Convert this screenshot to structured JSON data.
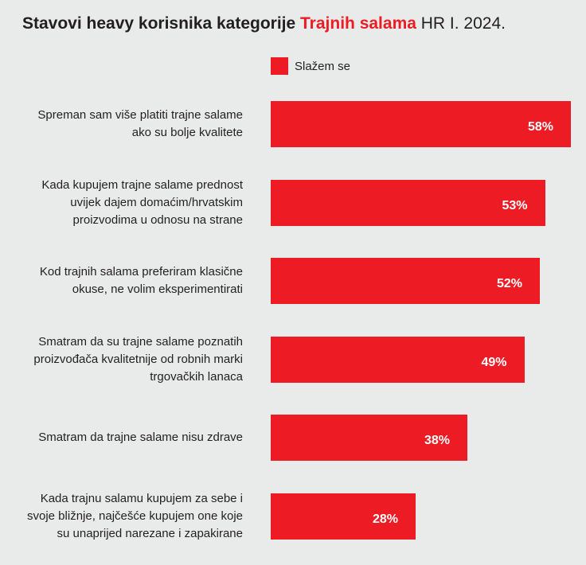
{
  "chart_data": {
    "type": "bar",
    "title": [
      "Stavovi heavy korisnika kategorije",
      "Trajnih salama",
      "HR I. 2024."
    ],
    "categories": [
      "Spreman sam više platiti trajne salame\nako su bolje kvalitete",
      "Kada kupujem trajne salame prednost\nuvijek dajem domaćim/hrvatskim\nproizvodima u odnosu na strane",
      "Kod trajnih salama preferiram klasične\nokuse, ne volim eksperimentirati",
      "Smatram da su trajne salame poznatih\nproizvođača kvalitetnije od robnih marki\ntrgovačkih lanaca",
      "Smatram da trajne salame nisu zdrave",
      "Kada trajnu salamu kupujem za sebe i\nsvoje bližnje, najčešće kupujem one koje\nsu unaprijed narezane i zapakirane"
    ],
    "series": [
      {
        "name": "Slažem se",
        "color": "#ed1c24",
        "values": [
          58,
          53,
          52,
          49,
          38,
          28
        ],
        "value_labels": [
          "58%",
          "53%",
          "52%",
          "49%",
          "38%",
          "28%"
        ]
      }
    ]
  }
}
